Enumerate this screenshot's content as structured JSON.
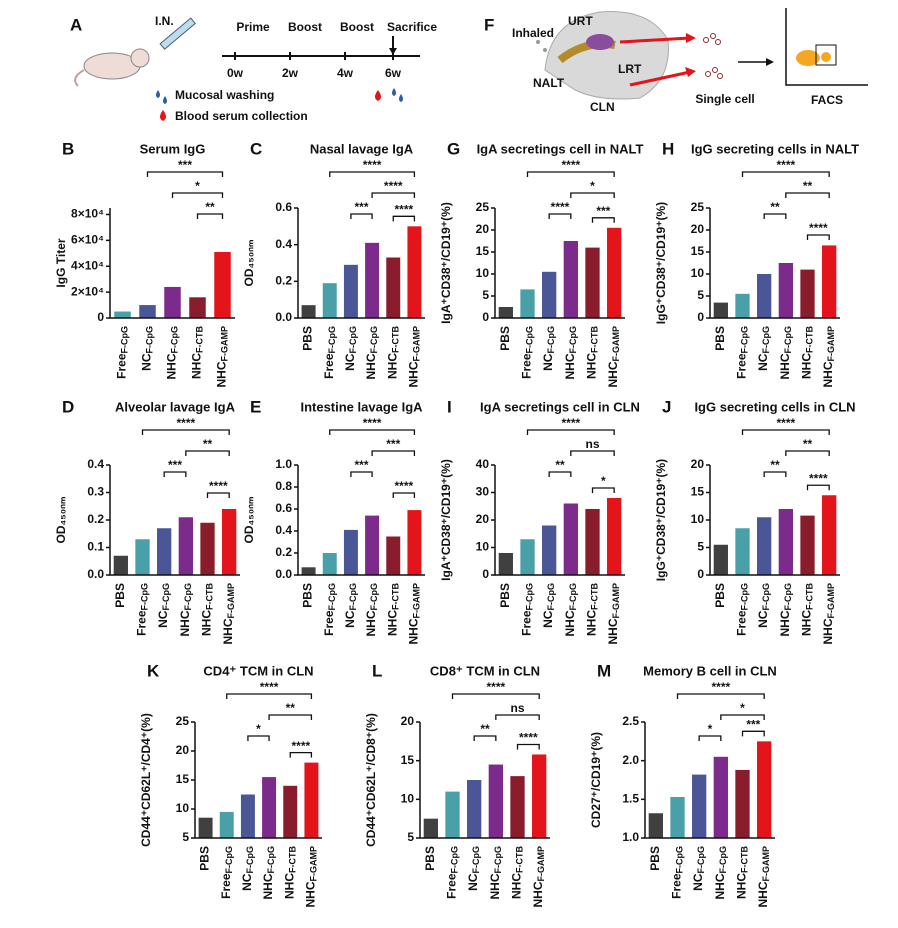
{
  "schematic_a": {
    "letter": "A",
    "route": "I.N.",
    "steps": [
      "Prime",
      "Boost",
      "Boost",
      "Sacrifice"
    ],
    "weeks": [
      "0w",
      "2w",
      "4w",
      "6w"
    ],
    "legend": [
      "Mucosal washing",
      "Blood serum collection"
    ]
  },
  "schematic_f": {
    "letter": "F",
    "labels": [
      "Inhaled",
      "URT",
      "NALT",
      "LRT",
      "CLN"
    ],
    "steps": [
      "Single cell",
      "FACS"
    ]
  },
  "chart_data": [
    {
      "type": "bar",
      "letter": "B",
      "title": "Serum IgG",
      "ylabel": "IgG Titer",
      "categories": [
        {
          "name": "Free",
          "sub": "F-CpG"
        },
        {
          "name": "NC",
          "sub": "F-CpG"
        },
        {
          "name": "NHC",
          "sub": "F-CpG"
        },
        {
          "name": "NHC",
          "sub": "F-CTB"
        },
        {
          "name": "NHC",
          "sub": "F-GAMP"
        }
      ],
      "values": [
        5000,
        10000,
        24000,
        16000,
        51000
      ],
      "colors": [
        "#4aa0a8",
        "#4a5696",
        "#7c2a8c",
        "#8a1d2c",
        "#e3151b"
      ],
      "ylim": [
        0,
        85000
      ],
      "yticks": [
        0,
        {
          "value": 20000,
          "label": "2×10⁴"
        },
        {
          "value": 40000,
          "label": "4×10⁴"
        },
        {
          "value": 60000,
          "label": "6×10⁴"
        },
        {
          "value": 80000,
          "label": "8×10⁴"
        }
      ],
      "annotations": [
        {
          "text": "***",
          "pair": [
            1,
            4
          ]
        },
        {
          "text": "*",
          "pair": [
            2,
            4
          ]
        },
        {
          "text": "**",
          "pair": [
            3,
            4
          ]
        }
      ]
    },
    {
      "type": "bar",
      "letter": "C",
      "title": "Nasal lavage IgA",
      "ylabel": "OD₄₅₀ₙₘ",
      "categories": [
        {
          "name": "PBS"
        },
        {
          "name": "Free",
          "sub": "F-CpG"
        },
        {
          "name": "NC",
          "sub": "F-CpG"
        },
        {
          "name": "NHC",
          "sub": "F-CpG"
        },
        {
          "name": "NHC",
          "sub": "F-CTB"
        },
        {
          "name": "NHC",
          "sub": "F-GAMP"
        }
      ],
      "values": [
        0.07,
        0.19,
        0.29,
        0.41,
        0.33,
        0.5
      ],
      "colors": [
        "#404040",
        "#4aa0a8",
        "#4a5696",
        "#7c2a8c",
        "#8a1d2c",
        "#e3151b"
      ],
      "ylim": [
        0,
        0.6
      ],
      "yticks": [
        {
          "value": 0,
          "label": "0.0"
        },
        0.2,
        0.4,
        0.6
      ],
      "annotations": [
        {
          "text": "****",
          "pair": [
            1,
            5
          ]
        },
        {
          "text": "****",
          "pair": [
            3,
            5
          ]
        },
        {
          "text": "***",
          "pair": [
            2,
            3
          ]
        },
        {
          "text": "****",
          "pair": [
            4,
            5
          ]
        }
      ]
    },
    {
      "type": "bar",
      "letter": "G",
      "title": "IgA secretings cell in NALT",
      "ylabel": "IgA⁺CD38⁺/CD19⁺(%)",
      "categories": [
        {
          "name": "PBS"
        },
        {
          "name": "Free",
          "sub": "F-CpG"
        },
        {
          "name": "NC",
          "sub": "F-CpG"
        },
        {
          "name": "NHC",
          "sub": "F-CpG"
        },
        {
          "name": "NHC",
          "sub": "F-CTB"
        },
        {
          "name": "NHC",
          "sub": "F-GAMP"
        }
      ],
      "values": [
        2.5,
        6.5,
        10.5,
        17.5,
        16,
        20.5
      ],
      "colors": [
        "#404040",
        "#4aa0a8",
        "#4a5696",
        "#7c2a8c",
        "#8a1d2c",
        "#e3151b"
      ],
      "ylim": [
        0,
        25
      ],
      "yticks": [
        0,
        5,
        10,
        15,
        20,
        25
      ],
      "annotations": [
        {
          "text": "****",
          "pair": [
            1,
            5
          ]
        },
        {
          "text": "*",
          "pair": [
            3,
            5
          ]
        },
        {
          "text": "****",
          "pair": [
            2,
            3
          ]
        },
        {
          "text": "***",
          "pair": [
            4,
            5
          ]
        }
      ]
    },
    {
      "type": "bar",
      "letter": "H",
      "title": "IgG secreting cells in NALT",
      "ylabel": "IgG⁺CD38⁺/CD19⁺(%)",
      "categories": [
        {
          "name": "PBS"
        },
        {
          "name": "Free",
          "sub": "F-CpG"
        },
        {
          "name": "NC",
          "sub": "F-CpG"
        },
        {
          "name": "NHC",
          "sub": "F-CpG"
        },
        {
          "name": "NHC",
          "sub": "F-CTB"
        },
        {
          "name": "NHC",
          "sub": "F-GAMP"
        }
      ],
      "values": [
        3.5,
        5.5,
        10,
        12.5,
        11,
        16.5
      ],
      "colors": [
        "#404040",
        "#4aa0a8",
        "#4a5696",
        "#7c2a8c",
        "#8a1d2c",
        "#e3151b"
      ],
      "ylim": [
        0,
        25
      ],
      "yticks": [
        0,
        5,
        10,
        15,
        20,
        25
      ],
      "annotations": [
        {
          "text": "****",
          "pair": [
            1,
            5
          ]
        },
        {
          "text": "**",
          "pair": [
            3,
            5
          ]
        },
        {
          "text": "**",
          "pair": [
            2,
            3
          ]
        },
        {
          "text": "****",
          "pair": [
            4,
            5
          ]
        }
      ]
    },
    {
      "type": "bar",
      "letter": "D",
      "title": "Alveolar lavage IgA",
      "ylabel": "OD₄₅₀ₙₘ",
      "categories": [
        {
          "name": "PBS"
        },
        {
          "name": "Free",
          "sub": "F-CpG"
        },
        {
          "name": "NC",
          "sub": "F-CpG"
        },
        {
          "name": "NHC",
          "sub": "F-CpG"
        },
        {
          "name": "NHC",
          "sub": "F-CTB"
        },
        {
          "name": "NHC",
          "sub": "F-GAMP"
        }
      ],
      "values": [
        0.07,
        0.13,
        0.17,
        0.21,
        0.19,
        0.24
      ],
      "colors": [
        "#404040",
        "#4aa0a8",
        "#4a5696",
        "#7c2a8c",
        "#8a1d2c",
        "#e3151b"
      ],
      "ylim": [
        0,
        0.4
      ],
      "yticks": [
        {
          "value": 0,
          "label": "0.0"
        },
        0.1,
        0.2,
        0.3,
        0.4
      ],
      "annotations": [
        {
          "text": "****",
          "pair": [
            1,
            5
          ]
        },
        {
          "text": "**",
          "pair": [
            3,
            5
          ]
        },
        {
          "text": "***",
          "pair": [
            2,
            3
          ]
        },
        {
          "text": "****",
          "pair": [
            4,
            5
          ]
        }
      ]
    },
    {
      "type": "bar",
      "letter": "E",
      "title": "Intestine lavage IgA",
      "ylabel": "OD₄₅₀ₙₘ",
      "categories": [
        {
          "name": "PBS"
        },
        {
          "name": "Free",
          "sub": "F-CpG"
        },
        {
          "name": "NC",
          "sub": "F-CpG"
        },
        {
          "name": "NHC",
          "sub": "F-CpG"
        },
        {
          "name": "NHC",
          "sub": "F-CTB"
        },
        {
          "name": "NHC",
          "sub": "F-GAMP"
        }
      ],
      "values": [
        0.07,
        0.2,
        0.41,
        0.54,
        0.35,
        0.59
      ],
      "colors": [
        "#404040",
        "#4aa0a8",
        "#4a5696",
        "#7c2a8c",
        "#8a1d2c",
        "#e3151b"
      ],
      "ylim": [
        0,
        1.0
      ],
      "yticks": [
        {
          "value": 0,
          "label": "0.0"
        },
        0.2,
        0.4,
        0.6,
        0.8,
        {
          "value": 1.0,
          "label": "1.0"
        }
      ],
      "annotations": [
        {
          "text": "****",
          "pair": [
            1,
            5
          ]
        },
        {
          "text": "***",
          "pair": [
            3,
            5
          ]
        },
        {
          "text": "***",
          "pair": [
            2,
            3
          ]
        },
        {
          "text": "****",
          "pair": [
            4,
            5
          ]
        }
      ]
    },
    {
      "type": "bar",
      "letter": "I",
      "title": "IgA secretings cell in CLN",
      "ylabel": "IgA⁺CD38⁺/CD19⁺(%)",
      "categories": [
        {
          "name": "PBS"
        },
        {
          "name": "Free",
          "sub": "F-CpG"
        },
        {
          "name": "NC",
          "sub": "F-CpG"
        },
        {
          "name": "NHC",
          "sub": "F-CpG"
        },
        {
          "name": "NHC",
          "sub": "F-CTB"
        },
        {
          "name": "NHC",
          "sub": "F-GAMP"
        }
      ],
      "values": [
        8,
        13,
        18,
        26,
        24,
        28
      ],
      "colors": [
        "#404040",
        "#4aa0a8",
        "#4a5696",
        "#7c2a8c",
        "#8a1d2c",
        "#e3151b"
      ],
      "ylim": [
        0,
        40
      ],
      "yticks": [
        0,
        10,
        20,
        30,
        40
      ],
      "annotations": [
        {
          "text": "****",
          "pair": [
            1,
            5
          ]
        },
        {
          "text": "ns",
          "pair": [
            3,
            5
          ]
        },
        {
          "text": "**",
          "pair": [
            2,
            3
          ]
        },
        {
          "text": "*",
          "pair": [
            4,
            5
          ]
        }
      ]
    },
    {
      "type": "bar",
      "letter": "J",
      "title": "IgG secreting cells in CLN",
      "ylabel": "IgG⁺CD38⁺/CD19⁺(%)",
      "categories": [
        {
          "name": "PBS"
        },
        {
          "name": "Free",
          "sub": "F-CpG"
        },
        {
          "name": "NC",
          "sub": "F-CpG"
        },
        {
          "name": "NHC",
          "sub": "F-CpG"
        },
        {
          "name": "NHC",
          "sub": "F-CTB"
        },
        {
          "name": "NHC",
          "sub": "F-GAMP"
        }
      ],
      "values": [
        5.5,
        8.5,
        10.5,
        12,
        10.8,
        14.5
      ],
      "colors": [
        "#404040",
        "#4aa0a8",
        "#4a5696",
        "#7c2a8c",
        "#8a1d2c",
        "#e3151b"
      ],
      "ylim": [
        0,
        20
      ],
      "yticks": [
        0,
        5,
        10,
        15,
        20
      ],
      "annotations": [
        {
          "text": "****",
          "pair": [
            1,
            5
          ]
        },
        {
          "text": "**",
          "pair": [
            3,
            5
          ]
        },
        {
          "text": "**",
          "pair": [
            2,
            3
          ]
        },
        {
          "text": "****",
          "pair": [
            4,
            5
          ]
        }
      ]
    },
    {
      "type": "bar",
      "letter": "K",
      "title": "CD4⁺ TCM in CLN",
      "ylabel": "CD44⁺CD62L⁺/CD4⁺(%)",
      "categories": [
        {
          "name": "PBS"
        },
        {
          "name": "Free",
          "sub": "F-CpG"
        },
        {
          "name": "NC",
          "sub": "F-CpG"
        },
        {
          "name": "NHC",
          "sub": "F-CpG"
        },
        {
          "name": "NHC",
          "sub": "F-CTB"
        },
        {
          "name": "NHC",
          "sub": "F-GAMP"
        }
      ],
      "values": [
        8.5,
        9.5,
        12.5,
        15.5,
        14,
        18
      ],
      "colors": [
        "#404040",
        "#4aa0a8",
        "#4a5696",
        "#7c2a8c",
        "#8a1d2c",
        "#e3151b"
      ],
      "ylim": [
        5,
        25
      ],
      "yticks": [
        5,
        10,
        15,
        20,
        25
      ],
      "annotations": [
        {
          "text": "****",
          "pair": [
            1,
            5
          ]
        },
        {
          "text": "**",
          "pair": [
            3,
            5
          ]
        },
        {
          "text": "*",
          "pair": [
            2,
            3
          ]
        },
        {
          "text": "****",
          "pair": [
            4,
            5
          ]
        }
      ]
    },
    {
      "type": "bar",
      "letter": "L",
      "title": "CD8⁺ TCM in CLN",
      "ylabel": "CD44⁺CD62L⁺/CD8⁺(%)",
      "categories": [
        {
          "name": "PBS"
        },
        {
          "name": "Free",
          "sub": "F-CpG"
        },
        {
          "name": "NC",
          "sub": "F-CpG"
        },
        {
          "name": "NHC",
          "sub": "F-CpG"
        },
        {
          "name": "NHC",
          "sub": "F-CTB"
        },
        {
          "name": "NHC",
          "sub": "F-GAMP"
        }
      ],
      "values": [
        7.5,
        11,
        12.5,
        14.5,
        13,
        15.8
      ],
      "colors": [
        "#404040",
        "#4aa0a8",
        "#4a5696",
        "#7c2a8c",
        "#8a1d2c",
        "#e3151b"
      ],
      "ylim": [
        5,
        20
      ],
      "yticks": [
        5,
        10,
        15,
        20
      ],
      "annotations": [
        {
          "text": "****",
          "pair": [
            1,
            5
          ]
        },
        {
          "text": "ns",
          "pair": [
            3,
            5
          ]
        },
        {
          "text": "**",
          "pair": [
            2,
            3
          ]
        },
        {
          "text": "****",
          "pair": [
            4,
            5
          ]
        }
      ]
    },
    {
      "type": "bar",
      "letter": "M",
      "title": "Memory B cell in CLN",
      "ylabel": "CD27⁺/CD19⁺(%)",
      "categories": [
        {
          "name": "PBS"
        },
        {
          "name": "Free",
          "sub": "F-CpG"
        },
        {
          "name": "NC",
          "sub": "F-CpG"
        },
        {
          "name": "NHC",
          "sub": "F-CpG"
        },
        {
          "name": "NHC",
          "sub": "F-CTB"
        },
        {
          "name": "NHC",
          "sub": "F-GAMP"
        }
      ],
      "values": [
        1.32,
        1.53,
        1.82,
        2.05,
        1.88,
        2.25
      ],
      "colors": [
        "#404040",
        "#4aa0a8",
        "#4a5696",
        "#7c2a8c",
        "#8a1d2c",
        "#e3151b"
      ],
      "ylim": [
        1.0,
        2.5
      ],
      "yticks": [
        {
          "value": 1.0,
          "label": "1.0"
        },
        1.5,
        {
          "value": 2.0,
          "label": "2.0"
        },
        2.5
      ],
      "annotations": [
        {
          "text": "****",
          "pair": [
            1,
            5
          ]
        },
        {
          "text": "*",
          "pair": [
            3,
            5
          ]
        },
        {
          "text": "*",
          "pair": [
            2,
            3
          ]
        },
        {
          "text": "***",
          "pair": [
            4,
            5
          ]
        }
      ]
    }
  ]
}
